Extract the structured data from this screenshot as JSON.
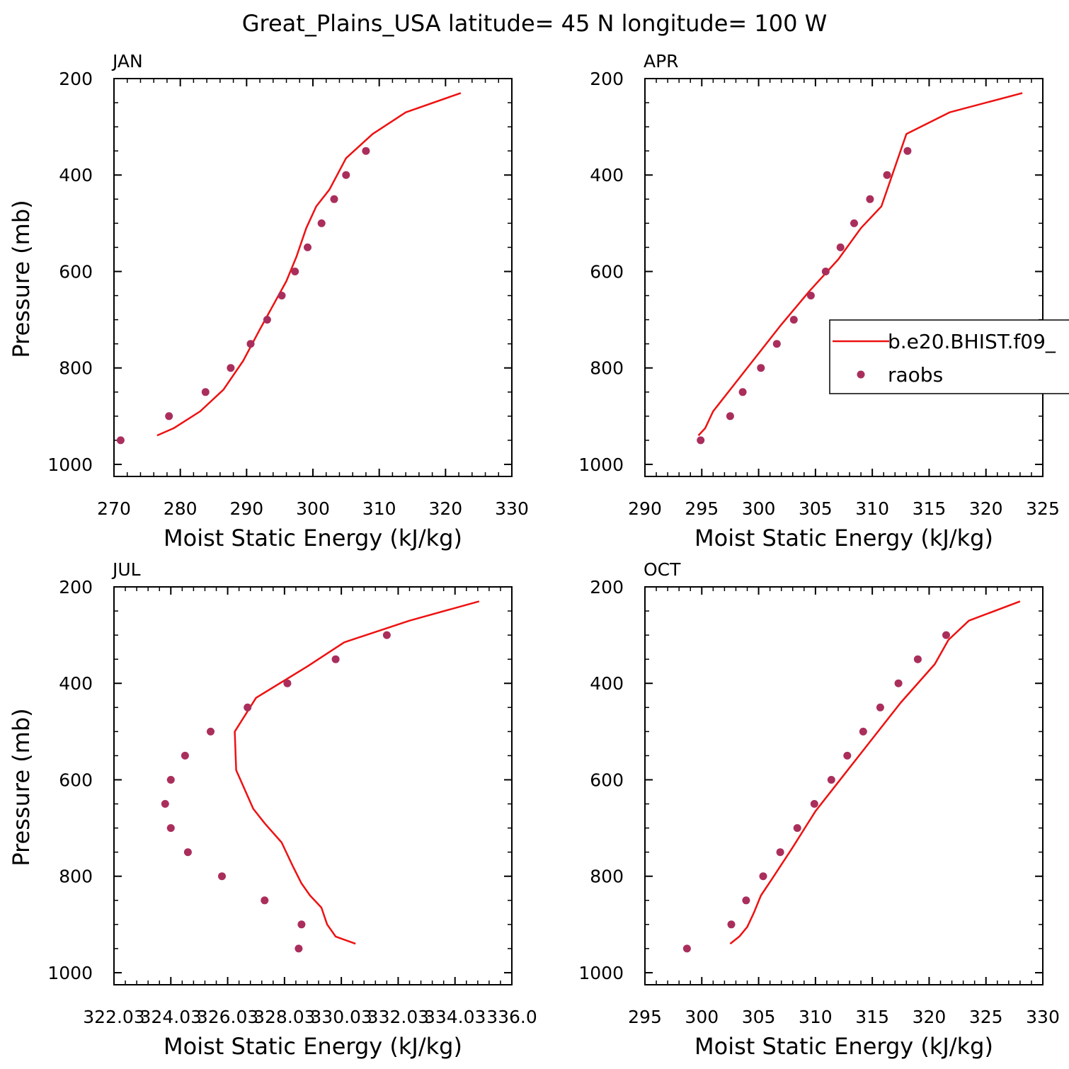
{
  "figure_title": "Great_Plains_USA  latitude= 45 N longitude= 100 W",
  "colors": {
    "model": "#ee1111",
    "obs": "#aa2e5c",
    "axis": "#000000"
  },
  "legend": {
    "model_label": "b.e20.BHIST.f09_",
    "obs_label": "raobs"
  },
  "chart_data": [
    {
      "type": "line",
      "panel_title": "JAN",
      "xlabel": "Moist Static Energy (kJ/kg)",
      "ylabel": "Pressure (mb)",
      "xlim": [
        270,
        330
      ],
      "ylim": [
        1025,
        200
      ],
      "xticks": [
        270,
        280,
        290,
        300,
        310,
        320,
        330
      ],
      "xtick_labels": [
        "270",
        "280",
        "290",
        "300",
        "310",
        "320",
        "330"
      ],
      "yticks": [
        200,
        400,
        600,
        800,
        1000
      ],
      "ytick_labels": [
        "200",
        "400",
        "600",
        "800",
        "1000"
      ],
      "series": [
        {
          "kind": "line",
          "x": [
            276.5,
            279,
            283,
            286.5,
            289.5,
            292,
            294,
            296,
            297.5,
            299,
            300.5,
            302.5,
            305,
            309,
            314,
            322.3
          ],
          "y": [
            940,
            925,
            890,
            845,
            785,
            720,
            670,
            620,
            570,
            510,
            465,
            430,
            365,
            315,
            270,
            230
          ]
        },
        {
          "kind": "scatter",
          "x": [
            271,
            278.3,
            283.8,
            287.6,
            290.6,
            293.1,
            295.3,
            297.3,
            299.2,
            301.3,
            303.2,
            305,
            308
          ],
          "y": [
            950,
            900,
            850,
            800,
            750,
            700,
            650,
            600,
            550,
            500,
            450,
            400,
            350
          ]
        }
      ]
    },
    {
      "type": "line",
      "panel_title": "APR",
      "xlabel": "Moist Static Energy (kJ/kg)",
      "ylabel": "",
      "xlim": [
        290,
        325
      ],
      "ylim": [
        1025,
        200
      ],
      "xticks": [
        290,
        295,
        300,
        305,
        310,
        315,
        320,
        325
      ],
      "xtick_labels": [
        "290",
        "295",
        "300",
        "305",
        "310",
        "315",
        "320",
        "325"
      ],
      "yticks": [
        200,
        400,
        600,
        800,
        1000
      ],
      "ytick_labels": [
        "200",
        "400",
        "600",
        "800",
        "1000"
      ],
      "series": [
        {
          "kind": "line",
          "x": [
            294.7,
            295.3,
            296,
            297.5,
            299.5,
            302,
            304.5,
            307,
            309,
            310.8,
            313,
            316.8,
            323.2
          ],
          "y": [
            940,
            925,
            890,
            845,
            785,
            710,
            640,
            575,
            510,
            465,
            315,
            270,
            230
          ]
        },
        {
          "kind": "scatter",
          "x": [
            294.9,
            297.5,
            298.6,
            300.2,
            301.6,
            303.1,
            304.6,
            305.9,
            307.2,
            308.4,
            309.8,
            311.3,
            313.1
          ],
          "y": [
            950,
            900,
            850,
            800,
            750,
            700,
            650,
            600,
            550,
            500,
            450,
            400,
            350
          ]
        }
      ]
    },
    {
      "type": "line",
      "panel_title": "JUL",
      "xlabel": "Moist Static Energy (kJ/kg)",
      "ylabel": "Pressure (mb)",
      "xlim": [
        322.03,
        336.03
      ],
      "ylim": [
        1025,
        200
      ],
      "xticks": [
        322.03,
        324.03,
        326.03,
        328.03,
        330.03,
        332.03,
        334.03,
        336.03
      ],
      "xtick_labels": [
        "322.03",
        "324.03",
        "326.03",
        "328.03",
        "330.03",
        "332.03",
        "334.03",
        "336.0"
      ],
      "yticks": [
        200,
        400,
        600,
        800,
        1000
      ],
      "ytick_labels": [
        "200",
        "400",
        "600",
        "800",
        "1000"
      ],
      "series": [
        {
          "kind": "line",
          "x": [
            330.53,
            329.83,
            329.53,
            329.33,
            328.93,
            328.63,
            328.33,
            327.93,
            327.33,
            326.93,
            326.33,
            326.28,
            327.03,
            328.83,
            330.13,
            332.43,
            334.88
          ],
          "y": [
            940,
            925,
            900,
            865,
            840,
            815,
            780,
            730,
            690,
            660,
            580,
            500,
            430,
            365,
            315,
            270,
            230
          ]
        },
        {
          "kind": "scatter",
          "x": [
            328.53,
            328.63,
            327.33,
            325.83,
            324.63,
            324.03,
            323.83,
            324.03,
            324.53,
            325.43,
            326.73,
            328.13,
            329.83,
            331.63
          ],
          "y": [
            950,
            900,
            850,
            800,
            750,
            700,
            650,
            600,
            550,
            500,
            450,
            400,
            350,
            300
          ]
        }
      ]
    },
    {
      "type": "line",
      "panel_title": "OCT",
      "xlabel": "Moist Static Energy (kJ/kg)",
      "ylabel": "",
      "xlim": [
        295,
        330
      ],
      "ylim": [
        1025,
        200
      ],
      "xticks": [
        295,
        300,
        305,
        310,
        315,
        320,
        325,
        330
      ],
      "xtick_labels": [
        "295",
        "300",
        "305",
        "310",
        "315",
        "320",
        "325",
        "330"
      ],
      "yticks": [
        200,
        400,
        600,
        800,
        1000
      ],
      "ytick_labels": [
        "200",
        "400",
        "600",
        "800",
        "1000"
      ],
      "series": [
        {
          "kind": "line",
          "x": [
            302.5,
            303.3,
            304,
            304.6,
            305.2,
            306.2,
            308,
            310,
            312.5,
            315,
            317.5,
            320.5,
            321.7,
            323.5,
            328
          ],
          "y": [
            940,
            925,
            905,
            875,
            840,
            805,
            740,
            665,
            590,
            515,
            440,
            360,
            310,
            270,
            230
          ]
        },
        {
          "kind": "scatter",
          "x": [
            298.7,
            302.6,
            303.9,
            305.4,
            306.9,
            308.4,
            309.9,
            311.4,
            312.8,
            314.2,
            315.7,
            317.3,
            319,
            321.5
          ],
          "y": [
            950,
            900,
            850,
            800,
            750,
            700,
            650,
            600,
            550,
            500,
            450,
            400,
            350,
            300
          ]
        }
      ]
    }
  ]
}
